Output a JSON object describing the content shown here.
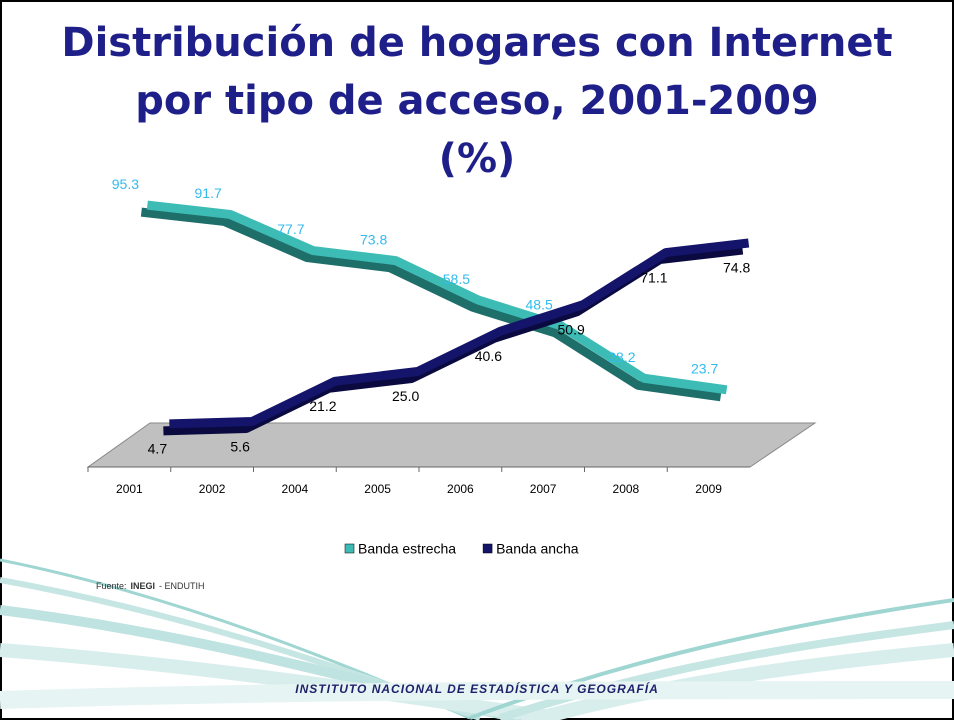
{
  "chart_data": {
    "type": "line",
    "title": [
      "Distribución de hogares con Internet",
      "por tipo de acceso, 2001-2009",
      "(%)"
    ],
    "categories": [
      "2001",
      "2002",
      "2004",
      "2005",
      "2006",
      "2007",
      "2008",
      "2009"
    ],
    "series": [
      {
        "name": "Banda estrecha",
        "color": "#3cbcb4",
        "values": [
          95.3,
          91.7,
          77.7,
          73.8,
          58.5,
          48.5,
          28.2,
          23.7
        ]
      },
      {
        "name": "Banda ancha",
        "color": "#14146a",
        "values": [
          4.7,
          5.6,
          21.2,
          25.0,
          40.6,
          50.9,
          71.1,
          74.8
        ],
        "value_labels": [
          "4.7",
          "5.6",
          "21.2",
          "25.0",
          "40.6",
          "50.9",
          "71.1",
          "74.8"
        ]
      }
    ],
    "legend": "bottom",
    "source": {
      "label": "Fuente:",
      "org": "INEGI",
      "rest": "- ENDUTIH"
    },
    "footer": "INSTITUTO NACIONAL DE ESTADÍSTICA Y GEOGRAFÍA"
  }
}
